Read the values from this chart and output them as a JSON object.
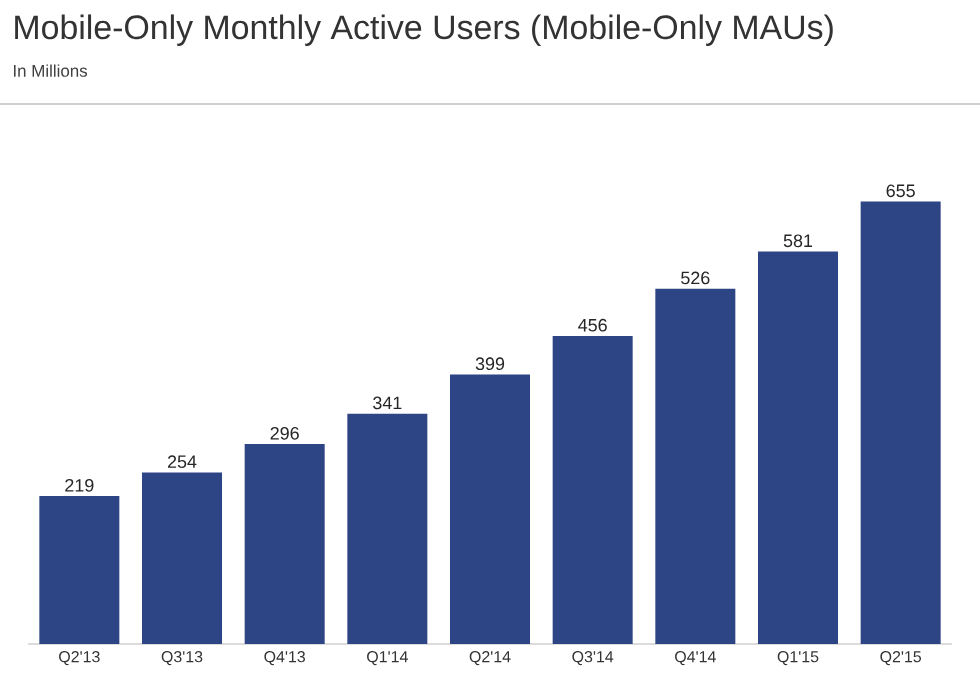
{
  "chart_data": {
    "type": "bar",
    "title": "Mobile-Only Monthly Active Users (Mobile-Only MAUs)",
    "subtitle": "In Millions",
    "categories": [
      "Q2'13",
      "Q3'13",
      "Q4'13",
      "Q1'14",
      "Q2'14",
      "Q3'14",
      "Q4'14",
      "Q1'15",
      "Q2'15"
    ],
    "values": [
      219,
      254,
      296,
      341,
      399,
      456,
      526,
      581,
      655
    ],
    "color": "#2e4585",
    "data_labels": true,
    "tick_labels": "x"
  }
}
